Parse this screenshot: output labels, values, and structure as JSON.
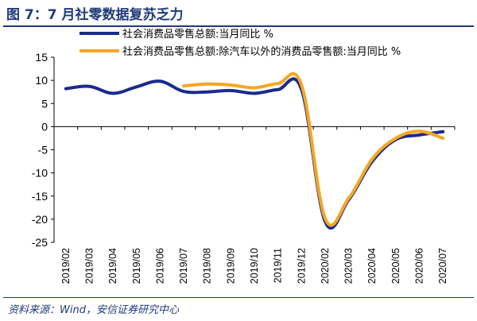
{
  "figure": {
    "title": "图 7：7 月社零数据复苏乏力",
    "source": "资料来源：Wind，安信证券研究中心"
  },
  "colors": {
    "series_1": "#1a2b8c",
    "series_2": "#f5a623",
    "accent": "#1f3a7a"
  },
  "chart_data": {
    "type": "line",
    "x": [
      "2019/02",
      "2019/03",
      "2019/04",
      "2019/05",
      "2019/06",
      "2019/07",
      "2019/08",
      "2019/09",
      "2019/10",
      "2019/11",
      "2019/12",
      "2020/02",
      "2020/03",
      "2020/04",
      "2020/05",
      "2020/06",
      "2020/07"
    ],
    "series": [
      {
        "name": "社会消费品零售总额:当月同比 %",
        "color": "#1a2b8c",
        "values": [
          8.2,
          8.7,
          7.2,
          8.6,
          9.8,
          7.6,
          7.5,
          7.8,
          7.2,
          8.0,
          8.0,
          -20.5,
          -15.8,
          -7.5,
          -2.8,
          -1.8,
          -1.1
        ]
      },
      {
        "name": "社会消费品零售总额:除汽车以外的消费品零售额:当月同比 %",
        "color": "#f5a623",
        "values": [
          null,
          null,
          null,
          null,
          null,
          8.8,
          9.2,
          9.0,
          8.4,
          9.3,
          9.0,
          -19.8,
          -15.5,
          -7.0,
          -2.5,
          -1.0,
          -2.5
        ]
      }
    ],
    "y_ticks": [
      15,
      10,
      5,
      0,
      -5,
      -10,
      -15,
      -20,
      -25
    ],
    "ylim": [
      -25,
      15
    ],
    "xlabel": "",
    "ylabel": "",
    "grid": false,
    "legend_position": "top"
  }
}
